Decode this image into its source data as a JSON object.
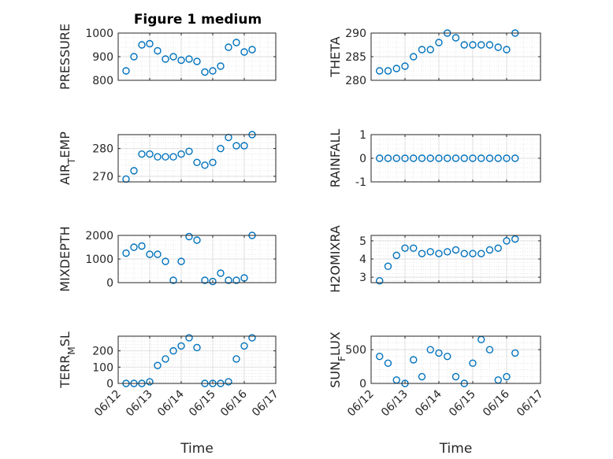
{
  "title": "Figure 1 medium",
  "chart_data": [
    {
      "type": "scatter",
      "ylabel": "PRESSURE",
      "ylim": [
        800,
        1000
      ],
      "yticks": [
        800,
        900,
        1000
      ],
      "ytick_labels": [
        "800",
        "900",
        "1000"
      ],
      "x": [
        "06/12 06:00",
        "06/12 12:00",
        "06/12 18:00",
        "06/13 00:00",
        "06/13 06:00",
        "06/13 12:00",
        "06/13 18:00",
        "06/14 00:00",
        "06/14 06:00",
        "06/14 12:00",
        "06/14 18:00",
        "06/15 00:00",
        "06/15 06:00",
        "06/15 12:00",
        "06/15 18:00",
        "06/16 00:00",
        "06/16 06:00"
      ],
      "y": [
        840,
        900,
        950,
        955,
        925,
        890,
        900,
        885,
        890,
        880,
        835,
        840,
        860,
        940,
        960,
        920,
        930
      ]
    },
    {
      "type": "scatter",
      "ylabel": "THETA",
      "ylim": [
        280,
        290
      ],
      "yticks": [
        280,
        285,
        290
      ],
      "ytick_labels": [
        "280",
        "285",
        "290"
      ],
      "x": [
        "06/12 06:00",
        "06/12 12:00",
        "06/12 18:00",
        "06/13 00:00",
        "06/13 06:00",
        "06/13 12:00",
        "06/13 18:00",
        "06/14 00:00",
        "06/14 06:00",
        "06/14 12:00",
        "06/14 18:00",
        "06/15 00:00",
        "06/15 06:00",
        "06/15 12:00",
        "06/15 18:00",
        "06/16 00:00",
        "06/16 06:00"
      ],
      "y": [
        282,
        282,
        282.5,
        283,
        285,
        286.5,
        286.5,
        288,
        290,
        289,
        287.5,
        287.5,
        287.5,
        287.5,
        287,
        286.5,
        290
      ]
    },
    {
      "type": "scatter",
      "ylabel": "AIR_TEMP",
      "ylim": [
        268,
        285
      ],
      "yticks": [
        270,
        280
      ],
      "ytick_labels": [
        "270",
        "280"
      ],
      "x": [
        "06/12 06:00",
        "06/12 12:00",
        "06/12 18:00",
        "06/13 00:00",
        "06/13 06:00",
        "06/13 12:00",
        "06/13 18:00",
        "06/14 00:00",
        "06/14 06:00",
        "06/14 12:00",
        "06/14 18:00",
        "06/15 00:00",
        "06/15 06:00",
        "06/15 12:00",
        "06/15 18:00",
        "06/16 00:00",
        "06/16 06:00"
      ],
      "y": [
        269,
        272,
        278,
        278,
        277,
        277,
        277,
        278,
        279,
        275,
        274,
        275,
        280,
        284,
        281,
        281,
        285
      ]
    },
    {
      "type": "scatter",
      "ylabel": "RAINFALL",
      "ylim": [
        -1,
        1
      ],
      "yticks": [
        -1,
        0,
        1
      ],
      "ytick_labels": [
        "-1",
        "0",
        "1"
      ],
      "x": [
        "06/12 06:00",
        "06/12 12:00",
        "06/12 18:00",
        "06/13 00:00",
        "06/13 06:00",
        "06/13 12:00",
        "06/13 18:00",
        "06/14 00:00",
        "06/14 06:00",
        "06/14 12:00",
        "06/14 18:00",
        "06/15 00:00",
        "06/15 06:00",
        "06/15 12:00",
        "06/15 18:00",
        "06/16 00:00",
        "06/16 06:00"
      ],
      "y": [
        0,
        0,
        0,
        0,
        0,
        0,
        0,
        0,
        0,
        0,
        0,
        0,
        0,
        0,
        0,
        0,
        0
      ]
    },
    {
      "type": "scatter",
      "ylabel": "MIXDEPTH",
      "ylim": [
        0,
        2000
      ],
      "yticks": [
        0,
        1000,
        2000
      ],
      "ytick_labels": [
        "0",
        "1000",
        "2000"
      ],
      "x": [
        "06/12 06:00",
        "06/12 12:00",
        "06/12 18:00",
        "06/13 00:00",
        "06/13 06:00",
        "06/13 12:00",
        "06/13 18:00",
        "06/14 00:00",
        "06/14 06:00",
        "06/14 12:00",
        "06/14 18:00",
        "06/15 00:00",
        "06/15 06:00",
        "06/15 12:00",
        "06/15 18:00",
        "06/16 00:00",
        "06/16 06:00"
      ],
      "y": [
        1250,
        1500,
        1550,
        1200,
        1200,
        900,
        100,
        900,
        1950,
        1800,
        100,
        50,
        400,
        100,
        100,
        200,
        2000
      ]
    },
    {
      "type": "scatter",
      "ylabel": "H2OMIXRA",
      "ylim": [
        2.7,
        5.3
      ],
      "yticks": [
        3,
        4,
        5
      ],
      "ytick_labels": [
        "3",
        "4",
        "5"
      ],
      "x": [
        "06/12 06:00",
        "06/12 12:00",
        "06/12 18:00",
        "06/13 00:00",
        "06/13 06:00",
        "06/13 12:00",
        "06/13 18:00",
        "06/14 00:00",
        "06/14 06:00",
        "06/14 12:00",
        "06/14 18:00",
        "06/15 00:00",
        "06/15 06:00",
        "06/15 12:00",
        "06/15 18:00",
        "06/16 00:00",
        "06/16 06:00"
      ],
      "y": [
        2.8,
        3.6,
        4.2,
        4.6,
        4.6,
        4.3,
        4.4,
        4.3,
        4.4,
        4.5,
        4.3,
        4.3,
        4.3,
        4.5,
        4.6,
        5.0,
        5.1
      ]
    },
    {
      "type": "scatter",
      "ylabel": "TERR_MSL",
      "ylim": [
        0,
        290
      ],
      "yticks": [
        0,
        100,
        200
      ],
      "ytick_labels": [
        "0",
        "100",
        "200"
      ],
      "xlabel": "Time",
      "xtick_labels": [
        "06/12",
        "06/13",
        "06/14",
        "06/15",
        "06/16",
        "06/17"
      ],
      "x": [
        "06/12 06:00",
        "06/12 12:00",
        "06/12 18:00",
        "06/13 00:00",
        "06/13 06:00",
        "06/13 12:00",
        "06/13 18:00",
        "06/14 00:00",
        "06/14 06:00",
        "06/14 12:00",
        "06/14 18:00",
        "06/15 00:00",
        "06/15 06:00",
        "06/15 12:00",
        "06/15 18:00",
        "06/16 00:00",
        "06/16 06:00"
      ],
      "y": [
        0,
        0,
        0,
        10,
        110,
        150,
        200,
        230,
        280,
        220,
        0,
        0,
        0,
        10,
        150,
        230,
        280
      ]
    },
    {
      "type": "scatter",
      "ylabel": "SUN_FLUX",
      "ylim": [
        0,
        700
      ],
      "yticks": [
        0,
        500
      ],
      "ytick_labels": [
        "0",
        "500"
      ],
      "xlabel": "Time",
      "xtick_labels": [
        "06/12",
        "06/13",
        "06/14",
        "06/15",
        "06/16",
        "06/17"
      ],
      "x": [
        "06/12 06:00",
        "06/12 12:00",
        "06/12 18:00",
        "06/13 00:00",
        "06/13 06:00",
        "06/13 12:00",
        "06/13 18:00",
        "06/14 00:00",
        "06/14 06:00",
        "06/14 12:00",
        "06/14 18:00",
        "06/15 00:00",
        "06/15 06:00",
        "06/15 12:00",
        "06/15 18:00",
        "06/16 00:00",
        "06/16 06:00"
      ],
      "y": [
        400,
        300,
        50,
        0,
        350,
        100,
        500,
        450,
        400,
        100,
        0,
        300,
        650,
        500,
        50,
        100,
        450
      ]
    }
  ]
}
